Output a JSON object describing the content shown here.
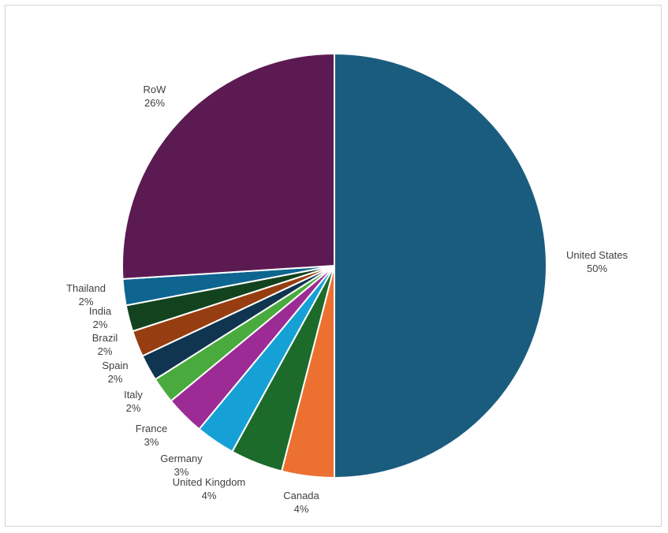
{
  "chart_data": {
    "type": "pie",
    "title": "",
    "colors": [
      "#1a5c7e",
      "#ec7131",
      "#1c6b2b",
      "#16a1d6",
      "#9c2b95",
      "#49ab3d",
      "#0f3550",
      "#963e11",
      "#12431e",
      "#0e6590",
      "#5c1a52"
    ],
    "slices": [
      {
        "label": "United States",
        "value": 50,
        "text": "50%"
      },
      {
        "label": "Canada",
        "value": 4,
        "text": "4%"
      },
      {
        "label": "United Kingdom",
        "value": 4,
        "text": "4%"
      },
      {
        "label": "Germany",
        "value": 3,
        "text": "3%"
      },
      {
        "label": "France",
        "value": 3,
        "text": "3%"
      },
      {
        "label": "Italy",
        "value": 2,
        "text": "2%"
      },
      {
        "label": "Spain",
        "value": 2,
        "text": "2%"
      },
      {
        "label": "Brazil",
        "value": 2,
        "text": "2%"
      },
      {
        "label": "India",
        "value": 2,
        "text": "2%"
      },
      {
        "label": "Thailand",
        "value": 2,
        "text": "2%"
      },
      {
        "label": "RoW",
        "value": 26,
        "text": "26%"
      }
    ]
  }
}
